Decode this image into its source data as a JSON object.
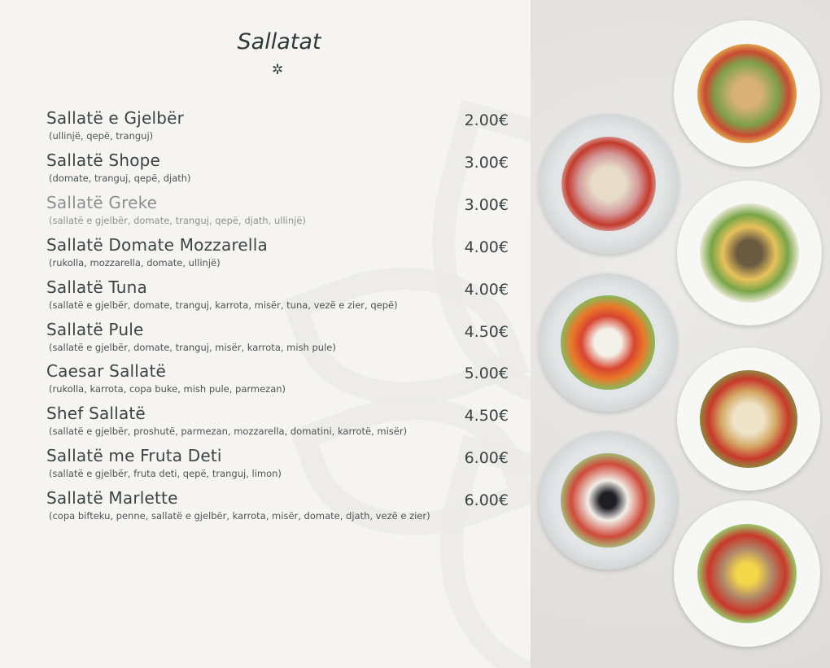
{
  "menu": {
    "title": "Sallatat",
    "ornament": "✲",
    "items": [
      {
        "name": "Sallatë e Gjelbër",
        "description": "(ullinjë, qepë, tranguj)",
        "price": "2.00€"
      },
      {
        "name": "Sallatë Shope",
        "description": "(domate, tranguj, qepë, djath)",
        "price": "3.00€"
      },
      {
        "name": "Sallatë Greke",
        "description": "(sallatë e gjelbër, domate, tranguj, qepë, djath, ullinjë)",
        "price": "3.00€"
      },
      {
        "name": "Sallatë Domate Mozzarella",
        "description": "(rukolla, mozzarella, domate, ullinjë)",
        "price": "4.00€"
      },
      {
        "name": "Sallatë Tuna",
        "description": "(sallatë e gjelbër, domate, tranguj, karrota, misër, tuna, vezë e zier, qepë)",
        "price": "4.00€"
      },
      {
        "name": "Sallatë Pule",
        "description": "(sallatë e gjelbër, domate, tranguj, misër, karrota, mish pule)",
        "price": "4.50€"
      },
      {
        "name": "Caesar Sallatë",
        "description": "(rukolla, karrota, copa buke, mish pule, parmezan)",
        "price": "5.00€"
      },
      {
        "name": "Shef Sallatë",
        "description": "(sallatë e gjelbër, proshutë, parmezan, mozzarella, domatini, karrotë, misër)",
        "price": "4.50€"
      },
      {
        "name": "Sallatë me Fruta Deti",
        "description": "(sallatë e gjelbër, fruta deti, qepë, tranguj, limon)",
        "price": "6.00€"
      },
      {
        "name": "Sallatë Marlette",
        "description": "(copa bifteku, penne, sallatë e gjelbër, karrota, misër, domate, djath, vezë e zier)",
        "price": "6.00€"
      }
    ]
  },
  "colors": {
    "background": "#f5f4f1",
    "text": "#3b4444",
    "title": "#2e3a3a"
  }
}
